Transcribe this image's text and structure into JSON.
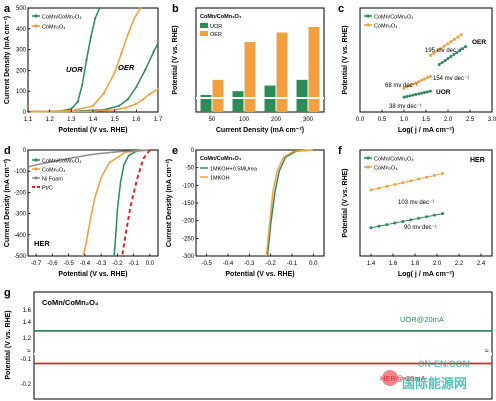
{
  "watermark": {
    "site": "CN-EN.COM",
    "name": "国际能源网",
    "colors": {
      "teal": "#2bb3a6",
      "red": "#e2343a"
    }
  },
  "chart_data": [
    {
      "id": "a",
      "panel_label": "a",
      "type": "line",
      "xlabel": "Potential (V vs. RHE)",
      "ylabel": "Current Density (mA cm⁻²)",
      "xlim": [
        1.1,
        1.7
      ],
      "ylim": [
        0,
        500
      ],
      "xticks": [
        "1.1",
        "1.2",
        "1.3",
        "1.4",
        "1.5",
        "1.6",
        "1.7"
      ],
      "yticks": [
        "0",
        "100",
        "200",
        "300",
        "400",
        "500"
      ],
      "annotations": [
        "UOR",
        "OER"
      ],
      "series": [
        {
          "name": "CoMn/CoMn₂O₄",
          "color": "#2e8b57",
          "x": [
            1.1,
            1.25,
            1.3,
            1.33,
            1.35,
            1.37,
            1.39,
            1.41,
            1.43
          ],
          "y": [
            2,
            5,
            15,
            50,
            130,
            250,
            360,
            450,
            500
          ]
        },
        {
          "name": "CoMn/CoMn₂O₄",
          "color": "#2e8b57",
          "x": [
            1.1,
            1.3,
            1.45,
            1.52,
            1.56,
            1.6,
            1.64,
            1.68,
            1.7
          ],
          "y": [
            2,
            4,
            10,
            30,
            60,
            120,
            200,
            290,
            330
          ]
        },
        {
          "name": "CoMn₃O₄",
          "color": "#f0a040",
          "x": [
            1.1,
            1.3,
            1.4,
            1.45,
            1.5,
            1.53,
            1.56,
            1.59,
            1.62
          ],
          "y": [
            2,
            6,
            30,
            90,
            190,
            280,
            370,
            450,
            500
          ]
        },
        {
          "name": "CoMn₃O₄",
          "color": "#f0a040",
          "x": [
            1.1,
            1.4,
            1.5,
            1.55,
            1.6,
            1.63,
            1.66,
            1.7
          ],
          "y": [
            1,
            4,
            10,
            20,
            40,
            60,
            85,
            110
          ]
        }
      ]
    },
    {
      "id": "b",
      "panel_label": "b",
      "type": "bar",
      "xlabel": "Current Density (mA cm⁻²)",
      "ylabel": "Potential (V vs. RHE)",
      "title": "CoMn/CoMn₂O₄",
      "categories": [
        "50",
        "100",
        "200",
        "300"
      ],
      "series": [
        {
          "name": "UOR",
          "color": "#2e8b57",
          "values": [
            1.34,
            1.36,
            1.39,
            1.42
          ]
        },
        {
          "name": "OER",
          "color": "#f0a040",
          "values": [
            1.42,
            1.62,
            1.67,
            1.7
          ]
        }
      ],
      "ylim": [
        1.25,
        1.8
      ]
    },
    {
      "id": "c",
      "panel_label": "c",
      "type": "scatter",
      "xlabel": "Log( j / mA cm⁻²)",
      "ylabel": "Potential (V vs. RHE)",
      "xlim": [
        0.0,
        3.0
      ],
      "xticks": [
        "0.0",
        "0.5",
        "1.0",
        "1.5",
        "2.0",
        "2.5",
        "3.0"
      ],
      "annotations": [
        "195 mv dec⁻¹",
        "154 mv dec⁻¹",
        "68 mv dec⁻¹",
        "38 mv dec⁻¹",
        "OER",
        "UOR"
      ],
      "series": [
        {
          "name": "CoMn/CoMn₂O₄",
          "color": "#2e8b57",
          "x": [
            1.0,
            1.6
          ],
          "y": [
            1.3,
            1.34
          ]
        },
        {
          "name": "CoMn/CoMn₂O₄",
          "color": "#2e8b57",
          "x": [
            1.8,
            2.4
          ],
          "y": [
            1.52,
            1.64
          ]
        },
        {
          "name": "CoMn₃O₄",
          "color": "#f0a040",
          "x": [
            1.0,
            1.6
          ],
          "y": [
            1.36,
            1.44
          ]
        },
        {
          "name": "CoMn₃O₄",
          "color": "#f0a040",
          "x": [
            1.6,
            2.3
          ],
          "y": [
            1.58,
            1.72
          ]
        }
      ],
      "ylim": [
        1.2,
        1.9
      ]
    },
    {
      "id": "d",
      "panel_label": "d",
      "type": "line",
      "xlabel": "Potential (V vs. RHE)",
      "ylabel": "Current Density (mA cm⁻²)",
      "xlim": [
        -0.75,
        0.05
      ],
      "ylim": [
        -500,
        0
      ],
      "xticks": [
        "-0.7",
        "-0.6",
        "-0.5",
        "-0.4",
        "-0.3",
        "-0.2",
        "-0.1",
        "0.0"
      ],
      "yticks": [
        "0",
        "-100",
        "-200",
        "-300",
        "-400",
        "-500"
      ],
      "annotations": [
        "HER"
      ],
      "series": [
        {
          "name": "CoMn/CoMn₂O₄",
          "color": "#2e8b57",
          "x": [
            0.0,
            -0.08,
            -0.13,
            -0.16,
            -0.18,
            -0.2,
            -0.21,
            -0.22
          ],
          "y": [
            0,
            -5,
            -25,
            -70,
            -150,
            -280,
            -400,
            -500
          ]
        },
        {
          "name": "CoMn₃O₄",
          "color": "#f0a040",
          "x": [
            0.0,
            -0.15,
            -0.25,
            -0.3,
            -0.34,
            -0.37,
            -0.39,
            -0.41
          ],
          "y": [
            0,
            -10,
            -60,
            -130,
            -230,
            -340,
            -430,
            -500
          ]
        },
        {
          "name": "Ni Foam",
          "color": "#8e8e8e",
          "x": [
            0.0,
            -0.2,
            -0.35,
            -0.5,
            -0.6,
            -0.7,
            -0.75
          ],
          "y": [
            0,
            -8,
            -20,
            -40,
            -55,
            -70,
            -80
          ]
        },
        {
          "name": "Pt/C",
          "color": "#d62828",
          "x": [
            0.0,
            -0.04,
            -0.08,
            -0.12,
            -0.15,
            -0.17
          ],
          "y": [
            0,
            -40,
            -140,
            -270,
            -400,
            -500
          ]
        }
      ]
    },
    {
      "id": "e",
      "panel_label": "e",
      "type": "line",
      "title": "CoMn/CoMn₂O₄",
      "xlabel": "Potential (V vs. RHE)",
      "ylabel": "Current Density (mA cm⁻²)",
      "xlim": [
        -0.55,
        0.05
      ],
      "ylim": [
        -300,
        0
      ],
      "xticks": [
        "-0.5",
        "-0.4",
        "-0.3",
        "-0.2",
        "-0.1",
        "0.0"
      ],
      "yticks": [
        "0",
        "-50",
        "-100",
        "-150",
        "-200",
        "-250",
        "-300"
      ],
      "series": [
        {
          "name": "1MKOH+0.5MUrea",
          "color": "#2e8b57",
          "x": [
            0.0,
            -0.08,
            -0.13,
            -0.16,
            -0.18,
            -0.2,
            -0.215
          ],
          "y": [
            0,
            -3,
            -20,
            -60,
            -120,
            -210,
            -300
          ]
        },
        {
          "name": "1MKOH",
          "color": "#f0a040",
          "x": [
            0.0,
            -0.09,
            -0.14,
            -0.17,
            -0.19,
            -0.205,
            -0.22
          ],
          "y": [
            0,
            -3,
            -20,
            -60,
            -120,
            -210,
            -300
          ]
        }
      ]
    },
    {
      "id": "f",
      "panel_label": "f",
      "type": "scatter",
      "xlabel": "Log( j / mA cm⁻²)",
      "ylabel": "Potential (V vs. RHE)",
      "xlim": [
        1.3,
        2.5
      ],
      "xticks": [
        "1.4",
        "1.6",
        "1.8",
        "2.0",
        "2.2",
        "2.4"
      ],
      "annotations": [
        "HER",
        "103 mv dec⁻¹",
        "90 mv dec⁻¹"
      ],
      "series": [
        {
          "name": "CoMn/CoMn₂O₄",
          "color": "#2e8b57",
          "x": [
            1.4,
            2.05
          ],
          "y": [
            0.12,
            0.18
          ]
        },
        {
          "name": "CoMn₃O₄",
          "color": "#f0a040",
          "x": [
            1.4,
            2.05
          ],
          "y": [
            0.28,
            0.35
          ]
        }
      ],
      "ylim": [
        0.0,
        0.45
      ]
    },
    {
      "id": "g",
      "panel_label": "g",
      "type": "line",
      "title": "CoMn/CoMn₂O₄",
      "ylabel": "Potential (V vs. RHE)",
      "yticks": [
        "1.6",
        "1.4",
        "1.2",
        "-0.1",
        "-0.2"
      ],
      "annotations": [
        "UOR@20mA",
        "HER@-20mA"
      ],
      "series": [
        {
          "name": "UOR@20mA",
          "color": "#2e8b57",
          "y_const": 1.33
        },
        {
          "name": "HER@-20mA",
          "color": "#d62828",
          "y_const": -0.11
        }
      ]
    }
  ]
}
